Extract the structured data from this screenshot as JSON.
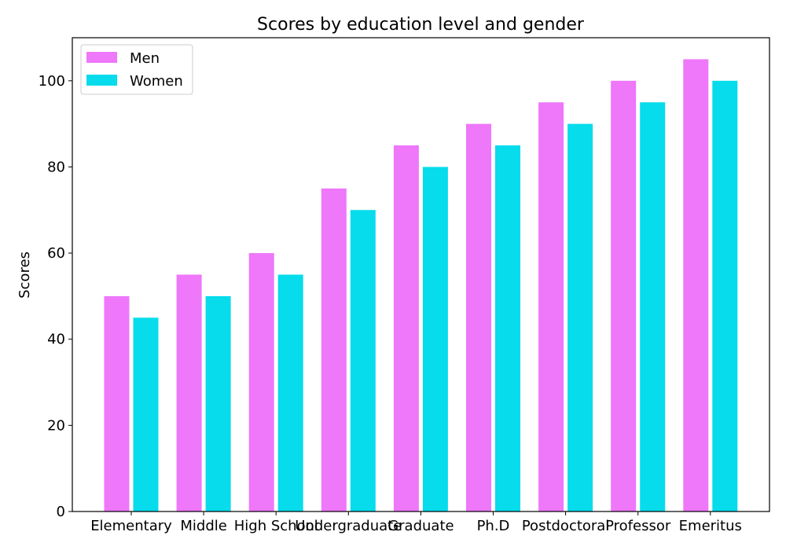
{
  "chart_data": {
    "type": "bar",
    "title": "Scores by education level and gender",
    "xlabel": "",
    "ylabel": "Scores",
    "categories": [
      "Elementary",
      "Middle",
      "High School",
      "Undergraduate",
      "Graduate",
      "Ph.D",
      "Postdoctoral",
      "Professor",
      "Emeritus"
    ],
    "series": [
      {
        "name": "Men",
        "color": "#ee77fa",
        "values": [
          50,
          55,
          60,
          75,
          85,
          90,
          95,
          100,
          105
        ]
      },
      {
        "name": "Women",
        "color": "#06dcec",
        "values": [
          45,
          50,
          55,
          70,
          80,
          85,
          90,
          95,
          100
        ]
      }
    ],
    "ylim": [
      0,
      110
    ],
    "yticks": [
      0,
      20,
      40,
      60,
      80,
      100
    ],
    "grid": false,
    "legend_position": "top-left"
  }
}
